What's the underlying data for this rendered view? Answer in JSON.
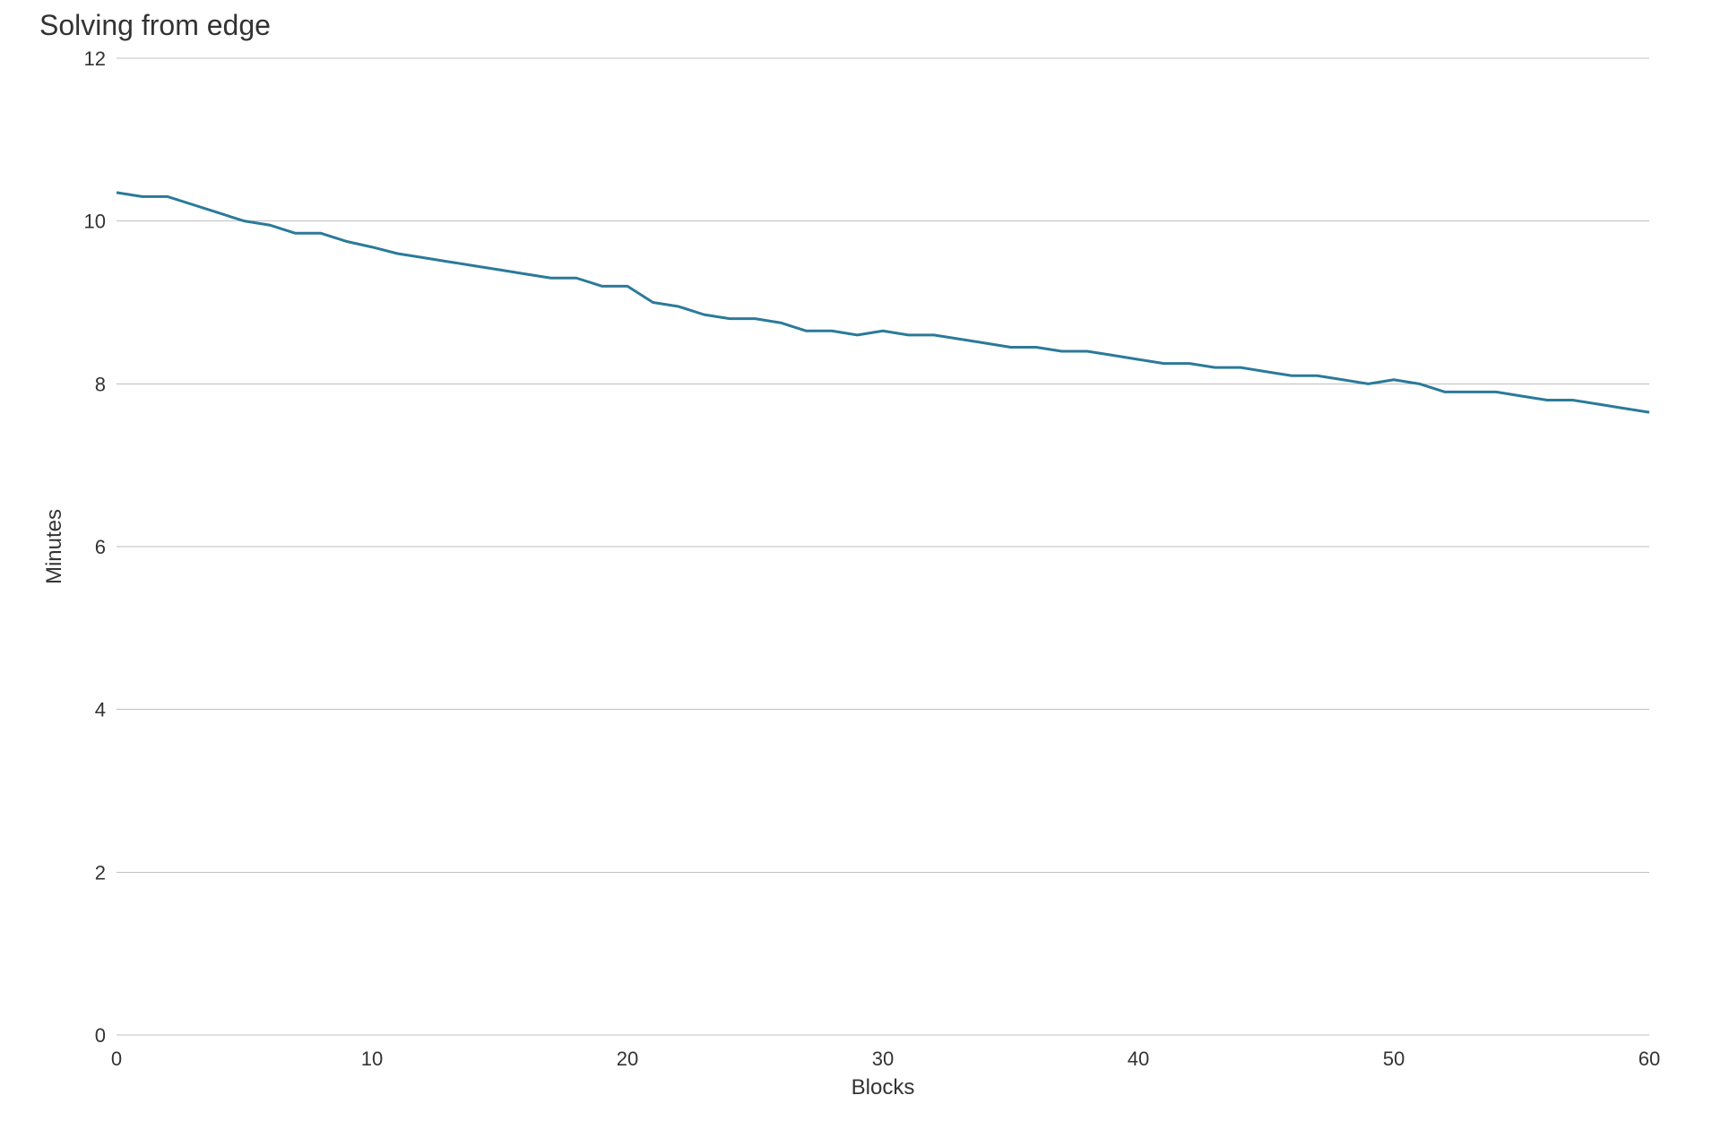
{
  "chart": {
    "type": "line",
    "title": "Solving from edge",
    "xlabel": "Blocks",
    "ylabel": "Minutes",
    "background_color": "#ffffff",
    "grid_color": "#c0c0c0",
    "axis_text_color": "#333333",
    "title_fontsize": 32,
    "label_fontsize": 24,
    "tick_fontsize": 22,
    "line_color": "#2b7a99",
    "line_width": 3,
    "xlim": [
      0,
      60
    ],
    "ylim": [
      0,
      12
    ],
    "xticks": [
      0,
      10,
      20,
      30,
      40,
      50,
      60
    ],
    "yticks": [
      0,
      2,
      4,
      6,
      8,
      10,
      12
    ],
    "data": {
      "x": [
        0,
        1,
        2,
        3,
        4,
        5,
        6,
        7,
        8,
        9,
        10,
        11,
        12,
        13,
        14,
        15,
        16,
        17,
        18,
        19,
        20,
        21,
        22,
        23,
        24,
        25,
        26,
        27,
        28,
        29,
        30,
        31,
        32,
        33,
        34,
        35,
        36,
        37,
        38,
        39,
        40,
        41,
        42,
        43,
        44,
        45,
        46,
        47,
        48,
        49,
        50,
        51,
        52,
        53,
        54,
        55,
        56,
        57,
        58,
        59,
        60
      ],
      "y": [
        10.35,
        10.3,
        10.3,
        10.2,
        10.1,
        10.0,
        9.95,
        9.85,
        9.85,
        9.75,
        9.68,
        9.6,
        9.55,
        9.5,
        9.45,
        9.4,
        9.35,
        9.3,
        9.3,
        9.2,
        9.2,
        9.0,
        8.95,
        8.85,
        8.8,
        8.8,
        8.75,
        8.65,
        8.65,
        8.6,
        8.65,
        8.6,
        8.6,
        8.55,
        8.5,
        8.45,
        8.45,
        8.4,
        8.4,
        8.35,
        8.3,
        8.25,
        8.25,
        8.2,
        8.2,
        8.15,
        8.1,
        8.1,
        8.05,
        8.0,
        8.05,
        8.0,
        7.9,
        7.9,
        7.9,
        7.85,
        7.8,
        7.8,
        7.75,
        7.7,
        7.65
      ]
    }
  }
}
